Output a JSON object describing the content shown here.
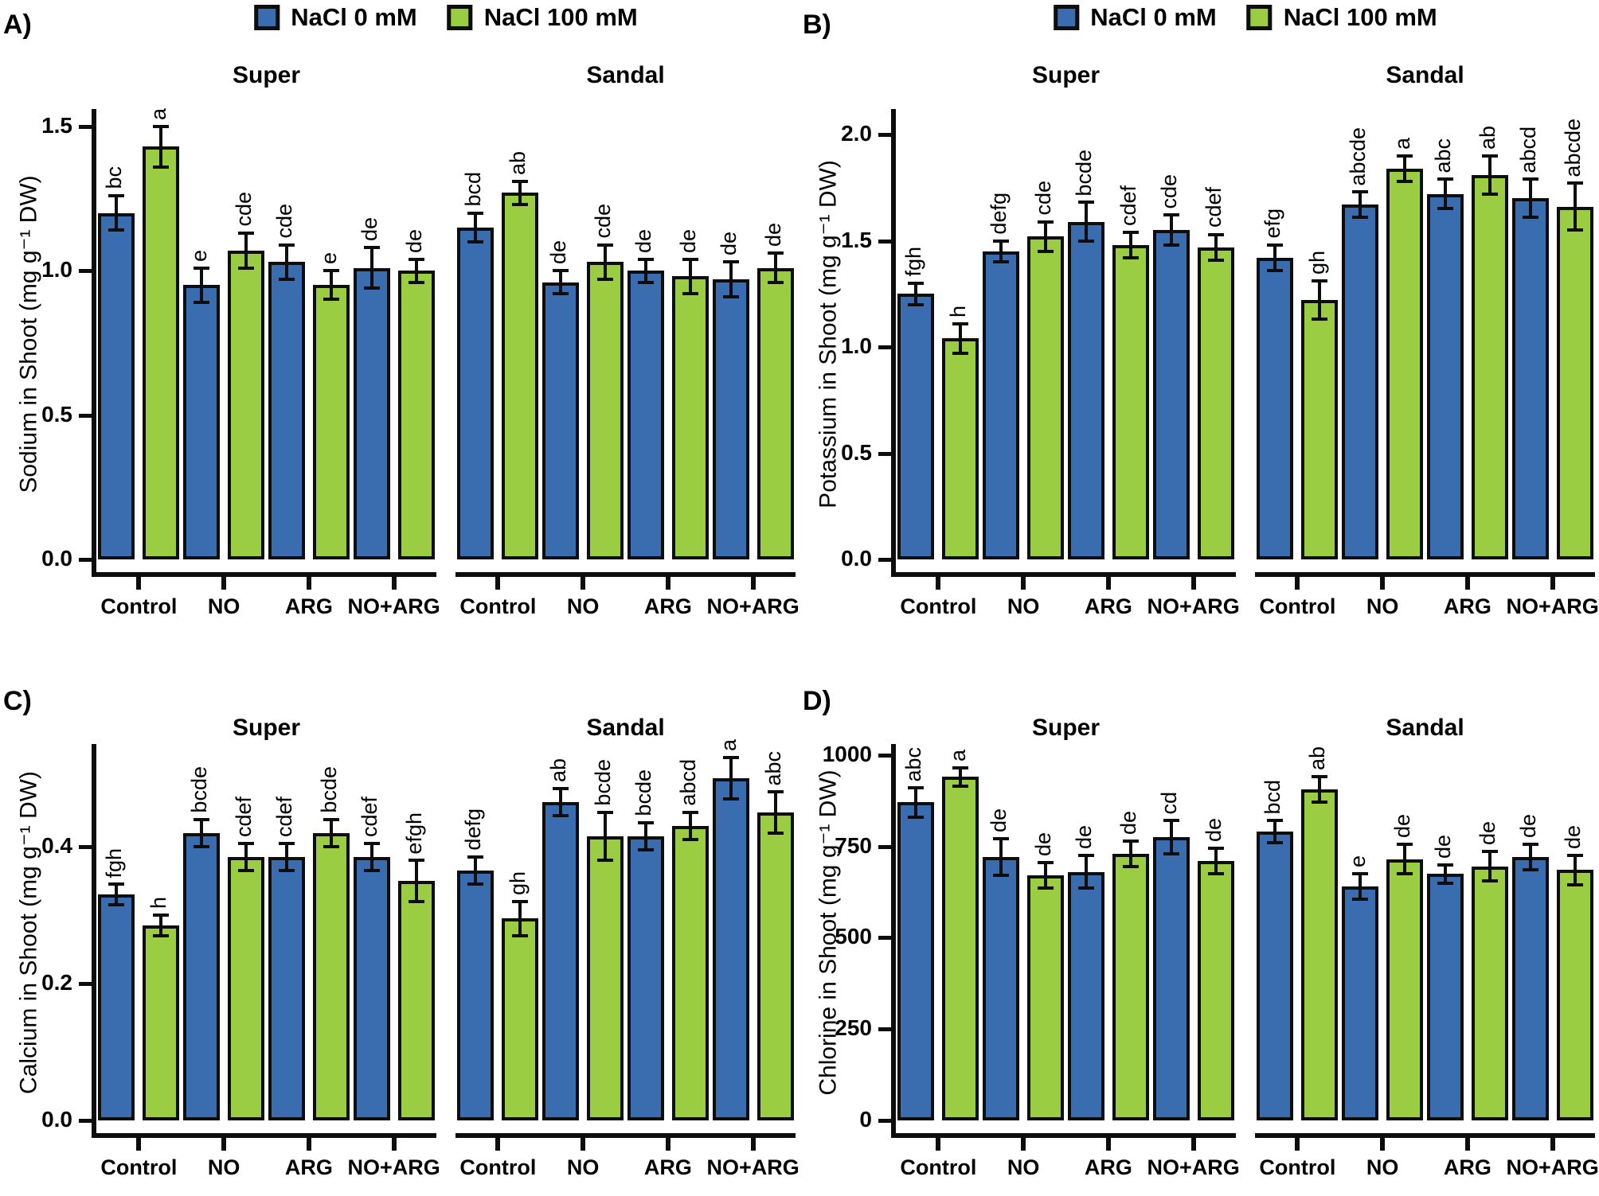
{
  "figure": {
    "panel_labels": [
      "A)",
      "B)",
      "C)",
      "D)"
    ],
    "facet_titles": [
      "Super",
      "Sandal"
    ],
    "treatments": [
      "Control",
      "NO",
      "ARG",
      "NO+ARG"
    ]
  },
  "legend": {
    "items": [
      {
        "label": "NaCl 0 mM",
        "color": "#3A6CB0"
      },
      {
        "label": "NaCl 100 mM",
        "color": "#9BCD43"
      }
    ]
  },
  "colors": {
    "nacl0": "#3A6CB0",
    "nacl100": "#9BCD43",
    "outline": "#0d0d0d"
  },
  "chart_data": [
    {
      "type": "bar",
      "panel_label": "A)",
      "ylabel": "Sodium in Shoot (mg g⁻¹ DW)",
      "ylim": [
        0,
        1.56
      ],
      "grid": false,
      "legend_position": "top",
      "series_names": [
        "NaCl 0 mM",
        "NaCl 100 mM"
      ],
      "categories": [
        "Control",
        "NO",
        "ARG",
        "NO+ARG"
      ],
      "yticks": [
        {
          "v": 0.0,
          "label": "0.0"
        },
        {
          "v": 0.5,
          "label": "0.5"
        },
        {
          "v": 1.0,
          "label": "1.0"
        },
        {
          "v": 1.5,
          "label": "1.5"
        }
      ],
      "facets": [
        {
          "title": "Super",
          "groups": [
            {
              "category": "Control",
              "bars": [
                {
                  "series": "NaCl 0 mM",
                  "value": 1.2,
                  "err": 0.06,
                  "letter": "bc"
                },
                {
                  "series": "NaCl 100 mM",
                  "value": 1.43,
                  "err": 0.07,
                  "letter": "a"
                }
              ]
            },
            {
              "category": "NO",
              "bars": [
                {
                  "series": "NaCl 0 mM",
                  "value": 0.95,
                  "err": 0.06,
                  "letter": "e"
                },
                {
                  "series": "NaCl 100 mM",
                  "value": 1.07,
                  "err": 0.06,
                  "letter": "cde"
                }
              ]
            },
            {
              "category": "ARG",
              "bars": [
                {
                  "series": "NaCl 0 mM",
                  "value": 1.03,
                  "err": 0.06,
                  "letter": "cde"
                },
                {
                  "series": "NaCl 100 mM",
                  "value": 0.95,
                  "err": 0.05,
                  "letter": "e"
                }
              ]
            },
            {
              "category": "NO+ARG",
              "bars": [
                {
                  "series": "NaCl 0 mM",
                  "value": 1.01,
                  "err": 0.07,
                  "letter": "de"
                },
                {
                  "series": "NaCl 100 mM",
                  "value": 1.0,
                  "err": 0.04,
                  "letter": "de"
                }
              ]
            }
          ]
        },
        {
          "title": "Sandal",
          "groups": [
            {
              "category": "Control",
              "bars": [
                {
                  "series": "NaCl 0 mM",
                  "value": 1.15,
                  "err": 0.05,
                  "letter": "bcd"
                },
                {
                  "series": "NaCl 100 mM",
                  "value": 1.27,
                  "err": 0.04,
                  "letter": "ab"
                }
              ]
            },
            {
              "category": "NO",
              "bars": [
                {
                  "series": "NaCl 0 mM",
                  "value": 0.96,
                  "err": 0.04,
                  "letter": "de"
                },
                {
                  "series": "NaCl 100 mM",
                  "value": 1.03,
                  "err": 0.06,
                  "letter": "cde"
                }
              ]
            },
            {
              "category": "ARG",
              "bars": [
                {
                  "series": "NaCl 0 mM",
                  "value": 1.0,
                  "err": 0.04,
                  "letter": "de"
                },
                {
                  "series": "NaCl 100 mM",
                  "value": 0.98,
                  "err": 0.06,
                  "letter": "de"
                }
              ]
            },
            {
              "category": "NO+ARG",
              "bars": [
                {
                  "series": "NaCl 0 mM",
                  "value": 0.97,
                  "err": 0.06,
                  "letter": "de"
                },
                {
                  "series": "NaCl 100 mM",
                  "value": 1.01,
                  "err": 0.05,
                  "letter": "de"
                }
              ]
            }
          ]
        }
      ]
    },
    {
      "type": "bar",
      "panel_label": "B)",
      "ylabel": "Potassium in Shoot (mg g⁻¹ DW)",
      "ylim": [
        0,
        2.12
      ],
      "grid": false,
      "legend_position": "top",
      "series_names": [
        "NaCl 0 mM",
        "NaCl 100 mM"
      ],
      "categories": [
        "Control",
        "NO",
        "ARG",
        "NO+ARG"
      ],
      "yticks": [
        {
          "v": 0.0,
          "label": "0.0"
        },
        {
          "v": 0.5,
          "label": "0.5"
        },
        {
          "v": 1.0,
          "label": "1.0"
        },
        {
          "v": 1.5,
          "label": "1.5"
        },
        {
          "v": 2.0,
          "label": "2.0"
        }
      ],
      "facets": [
        {
          "title": "Super",
          "groups": [
            {
              "category": "Control",
              "bars": [
                {
                  "series": "NaCl 0 mM",
                  "value": 1.25,
                  "err": 0.05,
                  "letter": "fgh"
                },
                {
                  "series": "NaCl 100 mM",
                  "value": 1.04,
                  "err": 0.07,
                  "letter": "h"
                }
              ]
            },
            {
              "category": "NO",
              "bars": [
                {
                  "series": "NaCl 0 mM",
                  "value": 1.45,
                  "err": 0.05,
                  "letter": "defg"
                },
                {
                  "series": "NaCl 100 mM",
                  "value": 1.52,
                  "err": 0.07,
                  "letter": "cde"
                }
              ]
            },
            {
              "category": "ARG",
              "bars": [
                {
                  "series": "NaCl 0 mM",
                  "value": 1.59,
                  "err": 0.09,
                  "letter": "bcde"
                },
                {
                  "series": "NaCl 100 mM",
                  "value": 1.48,
                  "err": 0.06,
                  "letter": "cdef"
                }
              ]
            },
            {
              "category": "NO+ARG",
              "bars": [
                {
                  "series": "NaCl 0 mM",
                  "value": 1.55,
                  "err": 0.07,
                  "letter": "cde"
                },
                {
                  "series": "NaCl 100 mM",
                  "value": 1.47,
                  "err": 0.06,
                  "letter": "cdef"
                }
              ]
            }
          ]
        },
        {
          "title": "Sandal",
          "groups": [
            {
              "category": "Control",
              "bars": [
                {
                  "series": "NaCl 0 mM",
                  "value": 1.42,
                  "err": 0.06,
                  "letter": "efg"
                },
                {
                  "series": "NaCl 100 mM",
                  "value": 1.22,
                  "err": 0.09,
                  "letter": "gh"
                }
              ]
            },
            {
              "category": "NO",
              "bars": [
                {
                  "series": "NaCl 0 mM",
                  "value": 1.67,
                  "err": 0.06,
                  "letter": "abcde"
                },
                {
                  "series": "NaCl 100 mM",
                  "value": 1.84,
                  "err": 0.06,
                  "letter": "a"
                }
              ]
            },
            {
              "category": "ARG",
              "bars": [
                {
                  "series": "NaCl 0 mM",
                  "value": 1.72,
                  "err": 0.07,
                  "letter": "abc"
                },
                {
                  "series": "NaCl 100 mM",
                  "value": 1.81,
                  "err": 0.09,
                  "letter": "ab"
                }
              ]
            },
            {
              "category": "NO+ARG",
              "bars": [
                {
                  "series": "NaCl 0 mM",
                  "value": 1.7,
                  "err": 0.09,
                  "letter": "abcd"
                },
                {
                  "series": "NaCl 100 mM",
                  "value": 1.66,
                  "err": 0.11,
                  "letter": "abcde"
                }
              ]
            }
          ]
        }
      ]
    },
    {
      "type": "bar",
      "panel_label": "C)",
      "ylabel": "Calcium in Shoot (mg g⁻¹ DW)",
      "ylim": [
        0,
        0.55
      ],
      "grid": false,
      "legend_position": "none",
      "series_names": [
        "NaCl 0 mM",
        "NaCl 100 mM"
      ],
      "categories": [
        "Control",
        "NO",
        "ARG",
        "NO+ARG"
      ],
      "yticks": [
        {
          "v": 0.0,
          "label": "0.0"
        },
        {
          "v": 0.2,
          "label": "0.2"
        },
        {
          "v": 0.4,
          "label": "0.4"
        }
      ],
      "facets": [
        {
          "title": "Super",
          "groups": [
            {
              "category": "Control",
              "bars": [
                {
                  "series": "NaCl 0 mM",
                  "value": 0.33,
                  "err": 0.015,
                  "letter": "fgh"
                },
                {
                  "series": "NaCl 100 mM",
                  "value": 0.285,
                  "err": 0.015,
                  "letter": "h"
                }
              ]
            },
            {
              "category": "NO",
              "bars": [
                {
                  "series": "NaCl 0 mM",
                  "value": 0.42,
                  "err": 0.02,
                  "letter": "bcde"
                },
                {
                  "series": "NaCl 100 mM",
                  "value": 0.385,
                  "err": 0.02,
                  "letter": "cdef"
                }
              ]
            },
            {
              "category": "ARG",
              "bars": [
                {
                  "series": "NaCl 0 mM",
                  "value": 0.385,
                  "err": 0.02,
                  "letter": "cdef"
                },
                {
                  "series": "NaCl 100 mM",
                  "value": 0.42,
                  "err": 0.02,
                  "letter": "bcde"
                }
              ]
            },
            {
              "category": "NO+ARG",
              "bars": [
                {
                  "series": "NaCl 0 mM",
                  "value": 0.385,
                  "err": 0.02,
                  "letter": "cdef"
                },
                {
                  "series": "NaCl 100 mM",
                  "value": 0.35,
                  "err": 0.03,
                  "letter": "efgh"
                }
              ]
            }
          ]
        },
        {
          "title": "Sandal",
          "groups": [
            {
              "category": "Control",
              "bars": [
                {
                  "series": "NaCl 0 mM",
                  "value": 0.365,
                  "err": 0.02,
                  "letter": "defg"
                },
                {
                  "series": "NaCl 100 mM",
                  "value": 0.295,
                  "err": 0.025,
                  "letter": "gh"
                }
              ]
            },
            {
              "category": "NO",
              "bars": [
                {
                  "series": "NaCl 0 mM",
                  "value": 0.465,
                  "err": 0.02,
                  "letter": "ab"
                },
                {
                  "series": "NaCl 100 mM",
                  "value": 0.415,
                  "err": 0.035,
                  "letter": "bcde"
                }
              ]
            },
            {
              "category": "ARG",
              "bars": [
                {
                  "series": "NaCl 0 mM",
                  "value": 0.415,
                  "err": 0.02,
                  "letter": "bcde"
                },
                {
                  "series": "NaCl 100 mM",
                  "value": 0.43,
                  "err": 0.02,
                  "letter": "abcd"
                }
              ]
            },
            {
              "category": "NO+ARG",
              "bars": [
                {
                  "series": "NaCl 0 mM",
                  "value": 0.5,
                  "err": 0.03,
                  "letter": "a"
                },
                {
                  "series": "NaCl 100 mM",
                  "value": 0.45,
                  "err": 0.03,
                  "letter": "abc"
                }
              ]
            }
          ]
        }
      ]
    },
    {
      "type": "bar",
      "panel_label": "D)",
      "ylabel": "Chlorine in Shoot (mg g⁻¹ DW)",
      "ylim": [
        0,
        1030
      ],
      "grid": false,
      "legend_position": "none",
      "series_names": [
        "NaCl 0 mM",
        "NaCl 100 mM"
      ],
      "categories": [
        "Control",
        "NO",
        "ARG",
        "NO+ARG"
      ],
      "yticks": [
        {
          "v": 0,
          "label": "0"
        },
        {
          "v": 250,
          "label": "250"
        },
        {
          "v": 500,
          "label": "500"
        },
        {
          "v": 750,
          "label": "750"
        },
        {
          "v": 1000,
          "label": "1000"
        }
      ],
      "facets": [
        {
          "title": "Super",
          "groups": [
            {
              "category": "Control",
              "bars": [
                {
                  "series": "NaCl 0 mM",
                  "value": 870,
                  "err": 40,
                  "letter": "abc"
                },
                {
                  "series": "NaCl 100 mM",
                  "value": 940,
                  "err": 25,
                  "letter": "a"
                }
              ]
            },
            {
              "category": "NO",
              "bars": [
                {
                  "series": "NaCl 0 mM",
                  "value": 720,
                  "err": 50,
                  "letter": "de"
                },
                {
                  "series": "NaCl 100 mM",
                  "value": 670,
                  "err": 35,
                  "letter": "de"
                }
              ]
            },
            {
              "category": "ARG",
              "bars": [
                {
                  "series": "NaCl 0 mM",
                  "value": 680,
                  "err": 45,
                  "letter": "de"
                },
                {
                  "series": "NaCl 100 mM",
                  "value": 730,
                  "err": 35,
                  "letter": "de"
                }
              ]
            },
            {
              "category": "NO+ARG",
              "bars": [
                {
                  "series": "NaCl 0 mM",
                  "value": 775,
                  "err": 45,
                  "letter": "cd"
                },
                {
                  "series": "NaCl 100 mM",
                  "value": 710,
                  "err": 35,
                  "letter": "de"
                }
              ]
            }
          ]
        },
        {
          "title": "Sandal",
          "groups": [
            {
              "category": "Control",
              "bars": [
                {
                  "series": "NaCl 0 mM",
                  "value": 790,
                  "err": 30,
                  "letter": "bcd"
                },
                {
                  "series": "NaCl 100 mM",
                  "value": 905,
                  "err": 35,
                  "letter": "ab"
                }
              ]
            },
            {
              "category": "NO",
              "bars": [
                {
                  "series": "NaCl 0 mM",
                  "value": 640,
                  "err": 35,
                  "letter": "e"
                },
                {
                  "series": "NaCl 100 mM",
                  "value": 715,
                  "err": 40,
                  "letter": "de"
                }
              ]
            },
            {
              "category": "ARG",
              "bars": [
                {
                  "series": "NaCl 0 mM",
                  "value": 675,
                  "err": 25,
                  "letter": "de"
                },
                {
                  "series": "NaCl 100 mM",
                  "value": 695,
                  "err": 40,
                  "letter": "de"
                }
              ]
            },
            {
              "category": "NO+ARG",
              "bars": [
                {
                  "series": "NaCl 0 mM",
                  "value": 720,
                  "err": 35,
                  "letter": "de"
                },
                {
                  "series": "NaCl 100 mM",
                  "value": 685,
                  "err": 40,
                  "letter": "de"
                }
              ]
            }
          ]
        }
      ]
    }
  ]
}
